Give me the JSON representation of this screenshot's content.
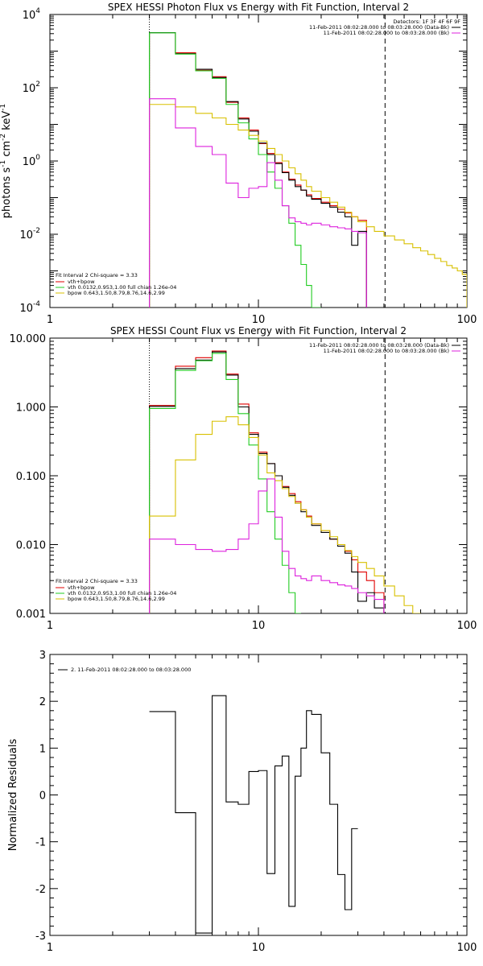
{
  "colors": {
    "data": "#000000",
    "total_fit": "#e00000",
    "vth": "#22cc22",
    "bpow": "#d8c000",
    "background": "#dd22dd"
  },
  "chart_data": [
    {
      "id": "photon",
      "type": "line",
      "title": "SPEX HESSI Photon Flux vs Energy with Fit Function, Interval 2",
      "xlabel": "",
      "ylabel_parts": [
        "photons s",
        "-1",
        " cm",
        "-2",
        " keV",
        "-1"
      ],
      "xscale": "log",
      "yscale": "log",
      "xlim": [
        1,
        100
      ],
      "ylim": [
        0.0001,
        10000
      ],
      "xticks": [
        {
          "v": 1,
          "label": "1"
        },
        {
          "v": 10,
          "label": "10"
        },
        {
          "v": 100,
          "label": "100"
        }
      ],
      "yticks": [
        {
          "v": 0.0001,
          "base": "10",
          "exp": "-4"
        },
        {
          "v": 0.01,
          "base": "10",
          "exp": "-2"
        },
        {
          "v": 1,
          "base": "10",
          "exp": "0"
        },
        {
          "v": 100,
          "base": "10",
          "exp": "2"
        },
        {
          "v": 10000,
          "base": "10",
          "exp": "4"
        }
      ],
      "edges": [
        3,
        4,
        5,
        6,
        7,
        8,
        9,
        10,
        11,
        12,
        13,
        14,
        15,
        16,
        17,
        18,
        20,
        22,
        24,
        26,
        28,
        30,
        33,
        36,
        40,
        45,
        50,
        55,
        60,
        65,
        70,
        75,
        80,
        85,
        90,
        95,
        100
      ],
      "series": [
        {
          "name": "data",
          "color_key": "bpow",
          "values": []
        },
        {
          "name": "vth+bpow",
          "color_key": "total_fit",
          "values": [
            3200,
            900,
            300,
            200,
            40,
            15,
            7,
            3,
            1.6,
            0.9,
            0.5,
            0.32,
            0.22,
            0.16,
            0.12,
            0.095,
            0.075,
            0.06,
            0.048,
            0.038,
            0.03,
            0.024
          ]
        },
        {
          "name": "data-black",
          "color_key": "data",
          "values": [
            3200,
            850,
            320,
            190,
            42,
            14,
            6.5,
            3.1,
            1.5,
            0.85,
            0.48,
            0.3,
            0.2,
            0.16,
            0.11,
            0.09,
            0.07,
            0.055,
            0.04,
            0.03,
            0.005,
            0.012
          ]
        },
        {
          "name": "vth 0.0132,0.953,1.00  full chian 1.26e-04",
          "color_key": "vth",
          "values": [
            3150,
            830,
            290,
            180,
            35,
            11,
            4,
            1.5,
            0.5,
            0.18,
            0.06,
            0.02,
            0.005,
            0.0015,
            0.0004,
            0.0001
          ]
        },
        {
          "name": "bpow 0.643,1.50,8.79,8.76,14.6,2.99",
          "color_key": "bpow",
          "values": [
            35,
            30,
            20,
            15,
            10,
            7,
            5,
            3.5,
            2.2,
            1.5,
            1.0,
            0.65,
            0.45,
            0.3,
            0.2,
            0.15,
            0.1,
            0.075,
            0.055,
            0.04,
            0.03,
            0.022,
            0.016,
            0.012,
            0.009,
            0.007,
            0.0055,
            0.0043,
            0.0035,
            0.0028,
            0.0022,
            0.0018,
            0.0014,
            0.0012,
            0.001,
            0.0008
          ]
        },
        {
          "name": "background",
          "color_key": "background",
          "values": [
            50,
            8,
            2.5,
            1.5,
            0.25,
            0.1,
            0.18,
            0.2,
            0.9,
            0.3,
            0.06,
            0.028,
            0.022,
            0.02,
            0.018,
            0.02,
            0.018,
            0.016,
            0.015,
            0.014,
            0.012,
            0.011
          ]
        }
      ],
      "vlines": [
        {
          "x": 3,
          "style": "dotted",
          "color_key": "data"
        },
        {
          "x": 40.5,
          "style": "dashed",
          "color_key": "data"
        }
      ],
      "legend_tr": {
        "header": "Detectors: 1F 3F 4F 6F 9F",
        "lines": [
          {
            "text": "11-Feb-2011 08:02:28.000 to 08:03:28.000 (Data-Bk)",
            "color_key": "data"
          },
          {
            "text": "11-Feb-2011 08:02:28.000 to 08:03:28.000 (Bk)",
            "color_key": "background"
          }
        ]
      },
      "legend_bl": {
        "header": "Fit Interval 2   Chi-square = 3.33",
        "lines": [
          {
            "text": "vth+bpow",
            "color_key": "total_fit"
          },
          {
            "text": "vth 0.0132,0.953,1.00  full chian 1.26e-04",
            "color_key": "vth"
          },
          {
            "text": "bpow 0.643,1.50,8.79,8.76,14.6,2.99",
            "color_key": "bpow"
          }
        ]
      }
    },
    {
      "id": "count",
      "type": "line",
      "title": "SPEX HESSI Count Flux vs Energy with Fit Function, Interval 2",
      "xlabel": "",
      "xscale": "log",
      "yscale": "log",
      "xlim": [
        1,
        100
      ],
      "ylim": [
        0.001,
        10
      ],
      "xticks": [
        {
          "v": 1,
          "label": "1"
        },
        {
          "v": 10,
          "label": "10"
        },
        {
          "v": 100,
          "label": "100"
        }
      ],
      "yticks": [
        {
          "v": 0.001,
          "label": "0.001"
        },
        {
          "v": 0.01,
          "label": "0.010"
        },
        {
          "v": 0.1,
          "label": "0.100"
        },
        {
          "v": 1,
          "label": "1.000"
        },
        {
          "v": 10,
          "label": "10.000"
        }
      ],
      "edges": [
        3,
        4,
        5,
        6,
        7,
        8,
        9,
        10,
        11,
        12,
        13,
        14,
        15,
        16,
        17,
        18,
        20,
        22,
        24,
        26,
        28,
        30,
        33,
        36,
        40,
        45,
        50,
        55,
        60
      ],
      "series": [
        {
          "name": "vth+bpow",
          "color_key": "total_fit",
          "values": [
            1.05,
            3.9,
            5.2,
            6.5,
            3.0,
            1.1,
            0.42,
            0.22,
            0.15,
            0.1,
            0.07,
            0.055,
            0.042,
            0.032,
            0.026,
            0.02,
            0.016,
            0.012,
            0.01,
            0.008,
            0.006,
            0.004,
            0.003,
            0.002
          ]
        },
        {
          "name": "data",
          "color_key": "data",
          "values": [
            1.02,
            3.6,
            4.8,
            6.3,
            2.9,
            1.0,
            0.4,
            0.21,
            0.15,
            0.1,
            0.068,
            0.052,
            0.04,
            0.03,
            0.025,
            0.019,
            0.015,
            0.012,
            0.0095,
            0.0075,
            0.004,
            0.0015,
            0.002,
            0.0012
          ]
        },
        {
          "name": "vth",
          "color_key": "vth",
          "values": [
            0.95,
            3.4,
            4.7,
            6.0,
            2.5,
            0.8,
            0.28,
            0.09,
            0.03,
            0.012,
            0.005,
            0.002,
            0.0008
          ]
        },
        {
          "name": "bpow",
          "color_key": "bpow",
          "values": [
            0.026,
            0.17,
            0.4,
            0.62,
            0.72,
            0.55,
            0.36,
            0.2,
            0.11,
            0.085,
            0.065,
            0.05,
            0.04,
            0.032,
            0.025,
            0.02,
            0.016,
            0.013,
            0.01,
            0.0082,
            0.0067,
            0.0055,
            0.0045,
            0.0035,
            0.0025,
            0.0018,
            0.0013,
            0.0009
          ]
        },
        {
          "name": "background",
          "color_key": "background",
          "values": [
            0.012,
            0.01,
            0.0085,
            0.008,
            0.0085,
            0.012,
            0.02,
            0.06,
            0.09,
            0.025,
            0.008,
            0.0045,
            0.0035,
            0.0032,
            0.003,
            0.0035,
            0.003,
            0.0028,
            0.0026,
            0.0025,
            0.0023,
            0.002,
            0.0018,
            0.0016
          ]
        }
      ],
      "vlines": [
        {
          "x": 3,
          "style": "dotted",
          "color_key": "data"
        },
        {
          "x": 40.5,
          "style": "dashed",
          "color_key": "data"
        }
      ],
      "legend_tr": {
        "lines": [
          {
            "text": "11-Feb-2011 08:02:28.000 to 08:03:28.000 (Data-Bk)",
            "color_key": "data"
          },
          {
            "text": "11-Feb-2011 08:02:28.000 to 08:03:28.000 (Bk)",
            "color_key": "background"
          }
        ]
      },
      "legend_bl": {
        "header": "Fit Interval 2   Chi-square = 3.33",
        "lines": [
          {
            "text": "vth+bpow",
            "color_key": "total_fit"
          },
          {
            "text": "vth 0.0132,0.953,1.00  full chian 1.26e-04",
            "color_key": "vth"
          },
          {
            "text": "bpow 0.643,1.50,8.79,8.76,14.6,2.99",
            "color_key": "bpow"
          }
        ]
      }
    },
    {
      "id": "resid",
      "type": "line",
      "title": "",
      "xlabel": "",
      "ylabel": "Normalized Residuals",
      "xscale": "log",
      "yscale": "linear",
      "xlim": [
        1,
        100
      ],
      "ylim": [
        -3,
        3
      ],
      "xticks": [
        {
          "v": 1,
          "label": "1"
        },
        {
          "v": 10,
          "label": "10"
        },
        {
          "v": 100,
          "label": "100"
        }
      ],
      "yticks": [
        {
          "v": -3,
          "label": "-3"
        },
        {
          "v": -2,
          "label": "-2"
        },
        {
          "v": -1,
          "label": "-1"
        },
        {
          "v": 0,
          "label": "0"
        },
        {
          "v": 1,
          "label": "1"
        },
        {
          "v": 2,
          "label": "2"
        },
        {
          "v": 3,
          "label": "3"
        }
      ],
      "edges": [
        3,
        4,
        5,
        6,
        7,
        8,
        9,
        10,
        11,
        12,
        13,
        14,
        15,
        16,
        17,
        18,
        20,
        22,
        24,
        26,
        28,
        30,
        33,
        36,
        40
      ],
      "series": [
        {
          "name": "2. 11-Feb-2011 08:02:28.000 to 08:03:28.000",
          "color_key": "data",
          "values": [
            1.78,
            -0.38,
            -2.95,
            2.12,
            -0.15,
            -0.2,
            0.5,
            0.52,
            -1.68,
            0.62,
            0.83,
            -2.38,
            0.4,
            1.0,
            1.8,
            1.72,
            0.9,
            -0.2,
            -1.7,
            -2.45,
            -0.72
          ]
        }
      ],
      "legend_tl": {
        "lines": [
          {
            "text": "2. 11-Feb-2011 08:02:28.000 to 08:03:28.000",
            "color_key": "data"
          }
        ]
      }
    }
  ]
}
